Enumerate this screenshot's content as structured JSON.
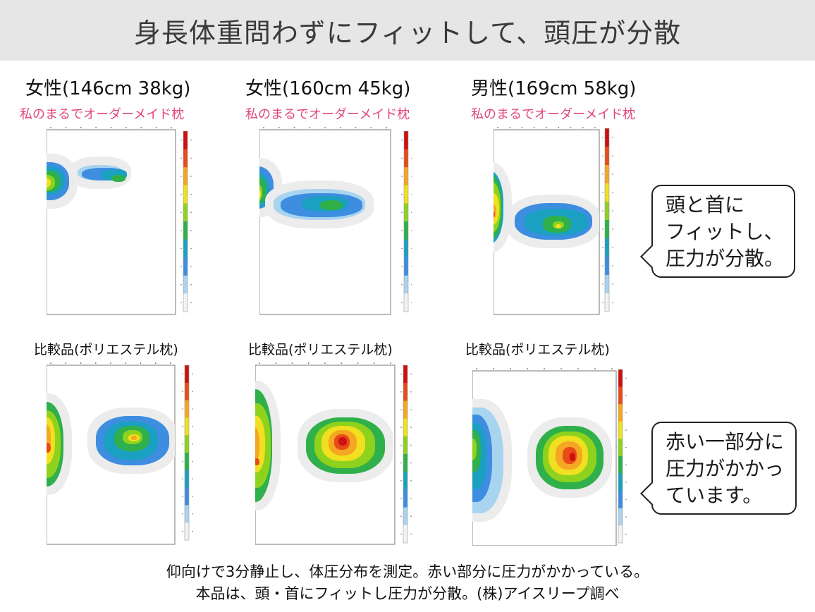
{
  "title": "身長体重問わずにフィットして、頭圧が分散",
  "subjects": [
    {
      "title": "女性(146cm 38kg)",
      "subtitle": "私のまるでオーダーメイド枕"
    },
    {
      "title": "女性(160cm 45kg)",
      "subtitle": "私のまるでオーダーメイド枕"
    },
    {
      "title": "男性(169cm 58kg)",
      "subtitle": "私のまるでオーダーメイド枕"
    }
  ],
  "comparison_label": "比較品(ポリエステル枕)",
  "bubbles": {
    "top": {
      "lines": [
        "頭と首に",
        "フィットし、",
        "圧力が分散。"
      ]
    },
    "bottom": {
      "lines": [
        "赤い一部分に",
        "圧力がかかっ",
        "ています。"
      ]
    }
  },
  "footer": {
    "line1": "仰向けで3分静止し、体圧分布を測定。赤い部分に圧力がかかっている。",
    "line2": "本品は、頭・首にフィットし圧力が分散。(株)アイスリープ調べ"
  },
  "pressure_scale_colors": [
    "#f2f2f2",
    "#a8d4f0",
    "#3d8ee0",
    "#1aa0c0",
    "#2fb04a",
    "#8fd21e",
    "#f0e020",
    "#f5a623",
    "#e84b1a",
    "#cc1111"
  ],
  "chart_data": [
    {
      "type": "heatmap",
      "row": "product",
      "subject": "女性(146cm 38kg)",
      "blobs": [
        {
          "region": "head",
          "peak_level": 6,
          "spread": "wide"
        },
        {
          "region": "neck",
          "peak_level": 4,
          "spread": "medium"
        }
      ]
    },
    {
      "type": "heatmap",
      "row": "product",
      "subject": "女性(160cm 45kg)",
      "blobs": [
        {
          "region": "head",
          "peak_level": 6,
          "spread": "wide"
        },
        {
          "region": "neck",
          "peak_level": 4,
          "spread": "wide"
        }
      ]
    },
    {
      "type": "heatmap",
      "row": "product",
      "subject": "男性(169cm 58kg)",
      "blobs": [
        {
          "region": "head",
          "peak_level": 8,
          "spread": "wide"
        },
        {
          "region": "neck",
          "peak_level": 6,
          "spread": "wide"
        }
      ]
    },
    {
      "type": "heatmap",
      "row": "comparison",
      "subject": "女性(146cm 38kg)",
      "blobs": [
        {
          "region": "head",
          "peak_level": 8,
          "spread": "split"
        },
        {
          "region": "neck",
          "peak_level": 7,
          "spread": "medium"
        }
      ]
    },
    {
      "type": "heatmap",
      "row": "comparison",
      "subject": "女性(160cm 45kg)",
      "blobs": [
        {
          "region": "head",
          "peak_level": 8,
          "spread": "split"
        },
        {
          "region": "neck",
          "peak_level": 9,
          "spread": "concentrated"
        }
      ]
    },
    {
      "type": "heatmap",
      "row": "comparison",
      "subject": "男性(169cm 58kg)",
      "blobs": [
        {
          "region": "head",
          "peak_level": 5,
          "spread": "split"
        },
        {
          "region": "neck",
          "peak_level": 9,
          "spread": "concentrated"
        }
      ]
    }
  ]
}
